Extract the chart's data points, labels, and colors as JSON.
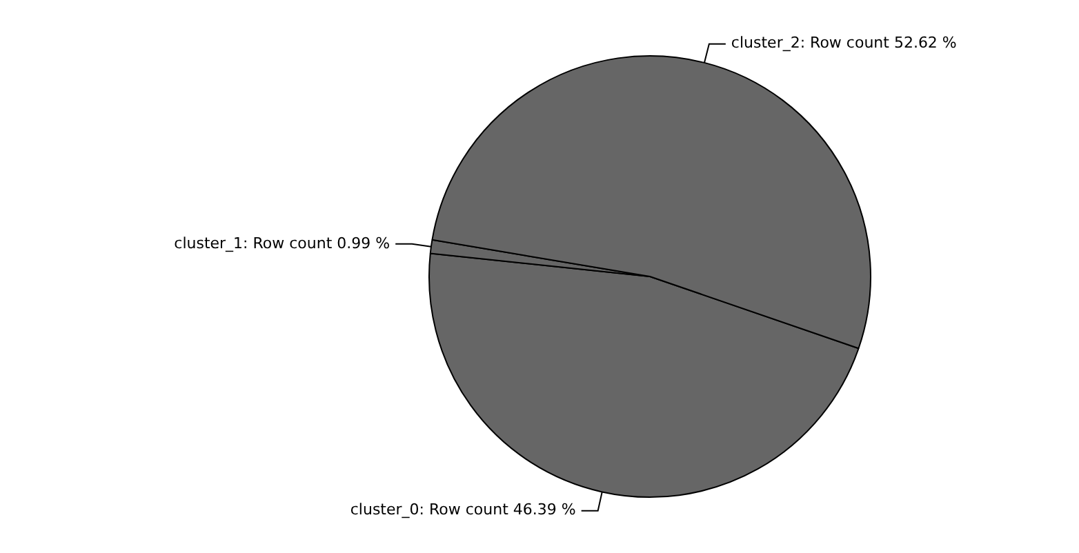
{
  "chart_data": {
    "type": "pie",
    "categories": [
      "cluster_0",
      "cluster_1",
      "cluster_2"
    ],
    "values": [
      46.39,
      0.99,
      52.62
    ],
    "colors": [
      "#666666",
      "#666666",
      "#666666"
    ],
    "value_labels": [
      ": Row count 46.39 %",
      ": Row count 0.99 %",
      ": Row count 52.62 %"
    ],
    "legend": false
  }
}
